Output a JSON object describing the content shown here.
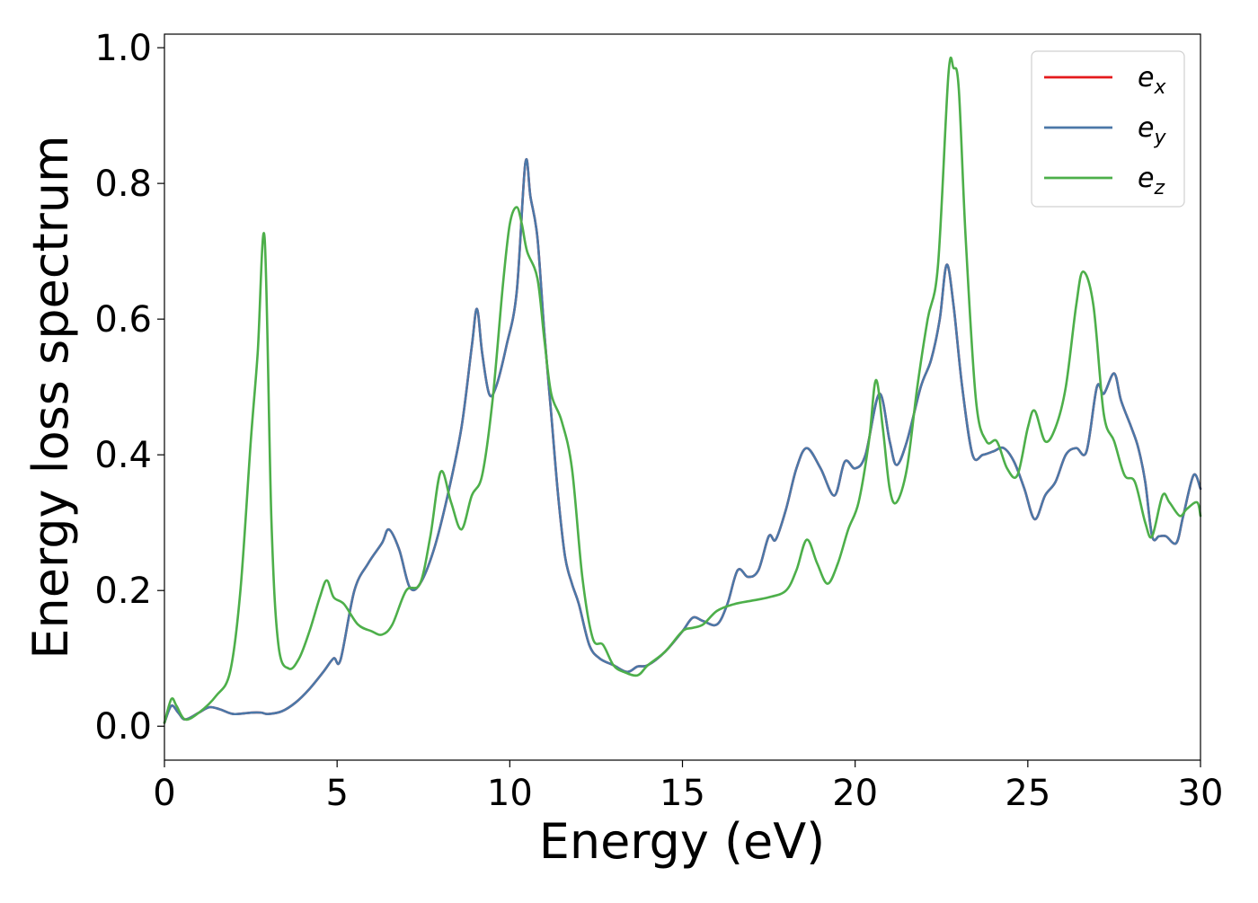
{
  "chart_data": {
    "type": "line",
    "xlabel": "Energy (eV)",
    "ylabel": "Energy loss spectrum",
    "xlim": [
      0,
      30
    ],
    "ylim": [
      -0.05,
      1.02
    ],
    "xticks": [
      0,
      5,
      10,
      15,
      20,
      25,
      30
    ],
    "yticks": [
      0.0,
      0.2,
      0.4,
      0.6,
      0.8,
      1.0
    ],
    "xtick_labels": [
      "0",
      "5",
      "10",
      "15",
      "20",
      "25",
      "30"
    ],
    "ytick_labels": [
      "0.0",
      "0.2",
      "0.4",
      "0.6",
      "0.8",
      "1.0"
    ],
    "grid": false,
    "legend_position": "top-right",
    "series": [
      {
        "name": "e",
        "subscript": "x",
        "color": "#e41a1c",
        "x": [
          0,
          0.2,
          0.4,
          0.6,
          1.0,
          1.3,
          1.6,
          2.0,
          2.5,
          2.8,
          3.0,
          3.4,
          3.8,
          4.2,
          4.6,
          4.9,
          5.1,
          5.5,
          5.9,
          6.3,
          6.5,
          6.8,
          7.1,
          7.4,
          7.8,
          8.2,
          8.6,
          8.9,
          9.05,
          9.2,
          9.4,
          9.6,
          9.9,
          10.2,
          10.45,
          10.6,
          10.8,
          11.0,
          11.2,
          11.4,
          11.6,
          11.8,
          12.0,
          12.3,
          12.6,
          13.0,
          13.4,
          13.7,
          14.0,
          14.5,
          15.0,
          15.3,
          15.6,
          16.0,
          16.3,
          16.6,
          16.9,
          17.2,
          17.5,
          17.7,
          18.0,
          18.3,
          18.6,
          19.0,
          19.4,
          19.7,
          20.0,
          20.3,
          20.7,
          21.0,
          21.2,
          21.5,
          21.9,
          22.2,
          22.45,
          22.65,
          22.85,
          23.1,
          23.4,
          23.7,
          24.0,
          24.3,
          24.6,
          24.9,
          25.2,
          25.5,
          25.8,
          26.1,
          26.4,
          26.7,
          27.0,
          27.2,
          27.5,
          27.7,
          28.0,
          28.2,
          28.4,
          28.6,
          28.8,
          29.0,
          29.3,
          29.5,
          29.8,
          30.0
        ],
        "y": [
          0.005,
          0.03,
          0.02,
          0.01,
          0.02,
          0.028,
          0.025,
          0.018,
          0.02,
          0.02,
          0.018,
          0.022,
          0.035,
          0.055,
          0.08,
          0.1,
          0.098,
          0.2,
          0.24,
          0.27,
          0.29,
          0.26,
          0.205,
          0.21,
          0.26,
          0.34,
          0.44,
          0.56,
          0.615,
          0.55,
          0.49,
          0.5,
          0.56,
          0.64,
          0.83,
          0.78,
          0.72,
          0.58,
          0.46,
          0.34,
          0.25,
          0.21,
          0.18,
          0.12,
          0.1,
          0.09,
          0.08,
          0.088,
          0.09,
          0.11,
          0.14,
          0.16,
          0.155,
          0.15,
          0.18,
          0.23,
          0.22,
          0.23,
          0.28,
          0.275,
          0.32,
          0.38,
          0.41,
          0.38,
          0.34,
          0.39,
          0.38,
          0.4,
          0.49,
          0.42,
          0.385,
          0.42,
          0.5,
          0.54,
          0.6,
          0.68,
          0.62,
          0.5,
          0.4,
          0.4,
          0.405,
          0.41,
          0.39,
          0.35,
          0.305,
          0.34,
          0.36,
          0.4,
          0.41,
          0.405,
          0.5,
          0.49,
          0.52,
          0.48,
          0.44,
          0.41,
          0.36,
          0.28,
          0.28,
          0.28,
          0.27,
          0.31,
          0.37,
          0.35
        ]
      },
      {
        "name": "e",
        "subscript": "y",
        "color": "#4b78a8",
        "x": [
          0,
          0.2,
          0.4,
          0.6,
          1.0,
          1.3,
          1.6,
          2.0,
          2.5,
          2.8,
          3.0,
          3.4,
          3.8,
          4.2,
          4.6,
          4.9,
          5.1,
          5.5,
          5.9,
          6.3,
          6.5,
          6.8,
          7.1,
          7.4,
          7.8,
          8.2,
          8.6,
          8.9,
          9.05,
          9.2,
          9.4,
          9.6,
          9.9,
          10.2,
          10.45,
          10.6,
          10.8,
          11.0,
          11.2,
          11.4,
          11.6,
          11.8,
          12.0,
          12.3,
          12.6,
          13.0,
          13.4,
          13.7,
          14.0,
          14.5,
          15.0,
          15.3,
          15.6,
          16.0,
          16.3,
          16.6,
          16.9,
          17.2,
          17.5,
          17.7,
          18.0,
          18.3,
          18.6,
          19.0,
          19.4,
          19.7,
          20.0,
          20.3,
          20.7,
          21.0,
          21.2,
          21.5,
          21.9,
          22.2,
          22.45,
          22.65,
          22.85,
          23.1,
          23.4,
          23.7,
          24.0,
          24.3,
          24.6,
          24.9,
          25.2,
          25.5,
          25.8,
          26.1,
          26.4,
          26.7,
          27.0,
          27.2,
          27.5,
          27.7,
          28.0,
          28.2,
          28.4,
          28.6,
          28.8,
          29.0,
          29.3,
          29.5,
          29.8,
          30.0
        ],
        "y": [
          0.005,
          0.03,
          0.02,
          0.01,
          0.02,
          0.028,
          0.025,
          0.018,
          0.02,
          0.02,
          0.018,
          0.022,
          0.035,
          0.055,
          0.08,
          0.1,
          0.098,
          0.2,
          0.24,
          0.27,
          0.29,
          0.26,
          0.205,
          0.21,
          0.26,
          0.34,
          0.44,
          0.56,
          0.615,
          0.55,
          0.49,
          0.5,
          0.56,
          0.64,
          0.83,
          0.78,
          0.72,
          0.58,
          0.46,
          0.34,
          0.25,
          0.21,
          0.18,
          0.12,
          0.1,
          0.09,
          0.08,
          0.088,
          0.09,
          0.11,
          0.14,
          0.16,
          0.155,
          0.15,
          0.18,
          0.23,
          0.22,
          0.23,
          0.28,
          0.275,
          0.32,
          0.38,
          0.41,
          0.38,
          0.34,
          0.39,
          0.38,
          0.4,
          0.49,
          0.42,
          0.385,
          0.42,
          0.5,
          0.54,
          0.6,
          0.68,
          0.62,
          0.5,
          0.4,
          0.4,
          0.405,
          0.41,
          0.39,
          0.35,
          0.305,
          0.34,
          0.36,
          0.4,
          0.41,
          0.405,
          0.5,
          0.49,
          0.52,
          0.48,
          0.44,
          0.41,
          0.36,
          0.28,
          0.28,
          0.28,
          0.27,
          0.31,
          0.37,
          0.35
        ]
      },
      {
        "name": "e",
        "subscript": "z",
        "color": "#4daf4a",
        "x": [
          0,
          0.2,
          0.35,
          0.6,
          1.0,
          1.5,
          1.9,
          2.2,
          2.5,
          2.7,
          2.9,
          3.1,
          3.3,
          3.6,
          3.9,
          4.2,
          4.5,
          4.7,
          4.9,
          5.2,
          5.6,
          6.0,
          6.3,
          6.6,
          7.0,
          7.4,
          7.7,
          8.0,
          8.3,
          8.6,
          8.9,
          9.2,
          9.5,
          9.8,
          10.0,
          10.2,
          10.35,
          10.5,
          10.8,
          11.0,
          11.2,
          11.5,
          11.8,
          12.1,
          12.4,
          12.7,
          13.0,
          13.3,
          13.7,
          14.0,
          14.5,
          15.0,
          15.3,
          15.6,
          16.0,
          16.5,
          17.0,
          17.5,
          18.0,
          18.3,
          18.6,
          18.9,
          19.2,
          19.5,
          19.8,
          20.1,
          20.4,
          20.6,
          20.8,
          21.0,
          21.2,
          21.5,
          21.8,
          22.1,
          22.4,
          22.7,
          22.85,
          23.0,
          23.2,
          23.5,
          23.8,
          24.1,
          24.4,
          24.7,
          25.0,
          25.2,
          25.5,
          25.8,
          26.1,
          26.4,
          26.6,
          26.9,
          27.2,
          27.5,
          27.8,
          28.1,
          28.4,
          28.6,
          28.9,
          29.1,
          29.4,
          29.6,
          29.9,
          30.0
        ],
        "y": [
          0.005,
          0.04,
          0.03,
          0.01,
          0.02,
          0.045,
          0.08,
          0.2,
          0.42,
          0.55,
          0.72,
          0.3,
          0.12,
          0.085,
          0.1,
          0.14,
          0.19,
          0.215,
          0.19,
          0.18,
          0.15,
          0.14,
          0.135,
          0.15,
          0.2,
          0.21,
          0.28,
          0.375,
          0.33,
          0.29,
          0.34,
          0.37,
          0.48,
          0.65,
          0.74,
          0.765,
          0.74,
          0.7,
          0.66,
          0.57,
          0.49,
          0.45,
          0.38,
          0.22,
          0.13,
          0.12,
          0.09,
          0.08,
          0.075,
          0.09,
          0.11,
          0.14,
          0.145,
          0.15,
          0.17,
          0.18,
          0.185,
          0.19,
          0.2,
          0.23,
          0.275,
          0.24,
          0.21,
          0.24,
          0.29,
          0.33,
          0.42,
          0.51,
          0.44,
          0.35,
          0.33,
          0.38,
          0.5,
          0.6,
          0.68,
          0.96,
          0.97,
          0.94,
          0.72,
          0.48,
          0.42,
          0.42,
          0.38,
          0.37,
          0.44,
          0.465,
          0.42,
          0.44,
          0.5,
          0.62,
          0.67,
          0.62,
          0.46,
          0.42,
          0.37,
          0.36,
          0.3,
          0.28,
          0.34,
          0.33,
          0.31,
          0.32,
          0.33,
          0.31
        ]
      }
    ]
  }
}
